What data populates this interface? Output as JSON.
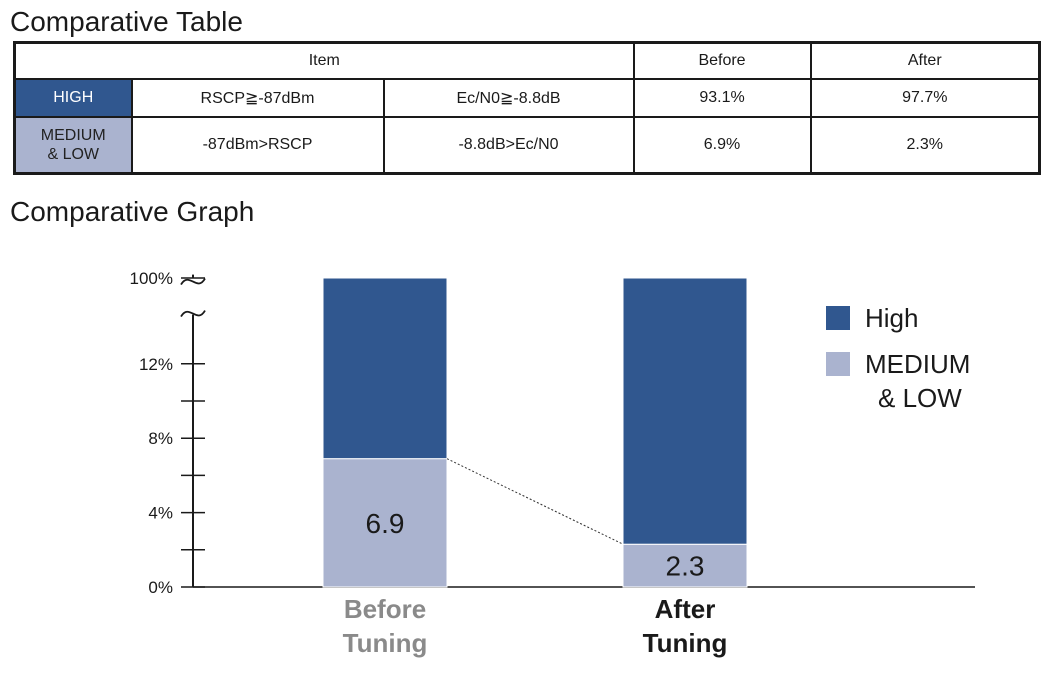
{
  "table": {
    "title": "Comparative Table",
    "headers": {
      "item": "Item",
      "before": "Before",
      "after": "After"
    },
    "rows": [
      {
        "category": [
          "HIGH"
        ],
        "cond1": "RSCP≧-87dBm",
        "cond2": "Ec/N0≧-8.8dB",
        "before": "93.1%",
        "after": "97.7%",
        "color": "#30578f"
      },
      {
        "category": [
          "MEDIUM",
          "& LOW"
        ],
        "cond1": "-87dBm>RSCP",
        "cond2": "-8.8dB>Ec/N0",
        "before": "6.9%",
        "after": "2.3%",
        "color": "#aab3cf"
      }
    ]
  },
  "graph_title": "Comparative Graph",
  "chart_data": {
    "type": "bar",
    "stacked": true,
    "categories": [
      {
        "lines": [
          "Before",
          "Tuning"
        ],
        "color": "#8a8a8a"
      },
      {
        "lines": [
          "After",
          "Tuning"
        ],
        "color": "#1a1a1a"
      }
    ],
    "series": [
      {
        "name": "MEDIUM & LOW",
        "legend_lines": [
          "MEDIUM",
          "& LOW"
        ],
        "values": [
          6.9,
          2.3
        ],
        "labels": [
          "6.9",
          "2.3"
        ],
        "color": "#aab3cf"
      },
      {
        "name": "High",
        "legend_lines": [
          "High"
        ],
        "values": [
          93.1,
          97.7
        ],
        "color": "#30578f"
      }
    ],
    "y_ticks": [
      {
        "value": 0,
        "label": "0%"
      },
      {
        "value": 4,
        "label": "4%"
      },
      {
        "value": 8,
        "label": "8%"
      },
      {
        "value": 12,
        "label": "12%"
      },
      {
        "value": 100,
        "label": "100%"
      }
    ],
    "y_minor_ticks": [
      2,
      6,
      10
    ],
    "axis_break": [
      14,
      100
    ],
    "ylim": [
      0,
      100
    ],
    "legend_position": "right",
    "connector_line": true
  }
}
